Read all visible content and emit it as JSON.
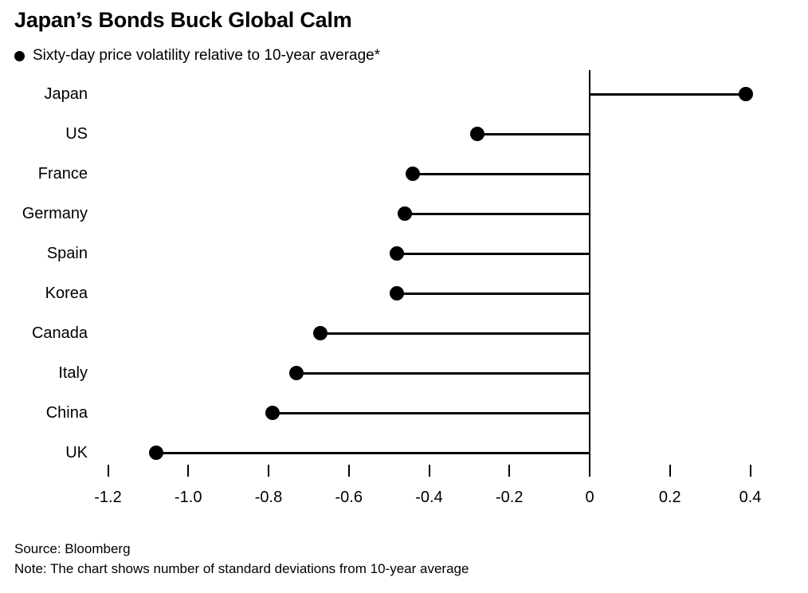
{
  "chart_data": {
    "type": "bar",
    "style": "lollipop-horizontal",
    "title": "Japan’s Bonds Buck Global Calm",
    "legend": "Sixty-day price volatility relative to 10-year average*",
    "categories": [
      "Japan",
      "US",
      "France",
      "Germany",
      "Spain",
      "Korea",
      "Canada",
      "Italy",
      "China",
      "UK"
    ],
    "values": [
      0.39,
      -0.28,
      -0.44,
      -0.46,
      -0.48,
      -0.48,
      -0.67,
      -0.73,
      -0.79,
      -1.08
    ],
    "baseline": 0,
    "xlim": [
      -1.28,
      0.5
    ],
    "xticks": [
      -1.2,
      -1.0,
      -0.8,
      -0.6,
      -0.4,
      -0.2,
      0,
      0.2,
      0.4
    ],
    "xtick_labels": [
      "-1.2",
      "-1.0",
      "-0.8",
      "-0.6",
      "-0.4",
      "-0.2",
      "0",
      "0.2",
      "0.4"
    ],
    "xlabel": "",
    "ylabel": "",
    "grid": false,
    "legend_position": "top-left",
    "colors": {
      "accent": "#000000",
      "background": "#ffffff"
    }
  },
  "footer": {
    "source": "Source: Bloomberg",
    "note": "Note: The chart shows number of standard deviations from 10-year average"
  }
}
